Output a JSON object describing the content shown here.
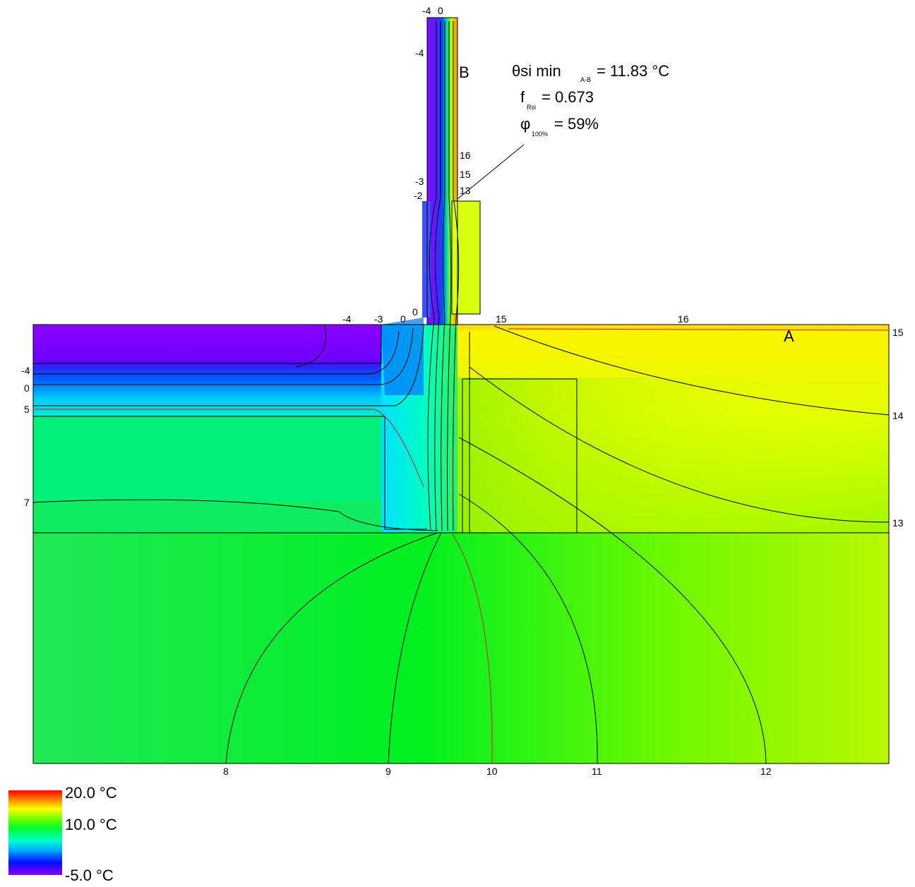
{
  "annotation": {
    "theta_symbol": "θsi min",
    "theta_sub": "A-B",
    "theta_value": "= 11.83 °C",
    "f_symbol": "f",
    "f_sub": "Rsi",
    "f_value": "= 0.673",
    "phi_symbol": "φ",
    "phi_sub": "100%",
    "phi_value": "= 59%"
  },
  "points": {
    "a": "A",
    "b": "B"
  },
  "isotherm_labels": {
    "wall_top": [
      "-4",
      "0"
    ],
    "wall_side": [
      "-4",
      "16",
      "15",
      "13",
      "-3",
      "-2",
      "0"
    ],
    "floor_top": [
      "-4",
      "-3",
      "0",
      "15",
      "16"
    ],
    "left": [
      "-4",
      "0",
      "5",
      "7"
    ],
    "right": [
      "15",
      "14",
      "13"
    ],
    "bottom": [
      "8",
      "9",
      "10",
      "11",
      "12"
    ]
  },
  "legend": {
    "labels": [
      "20.0 °C",
      "10.0 °C",
      "-5.0 °C"
    ]
  }
}
